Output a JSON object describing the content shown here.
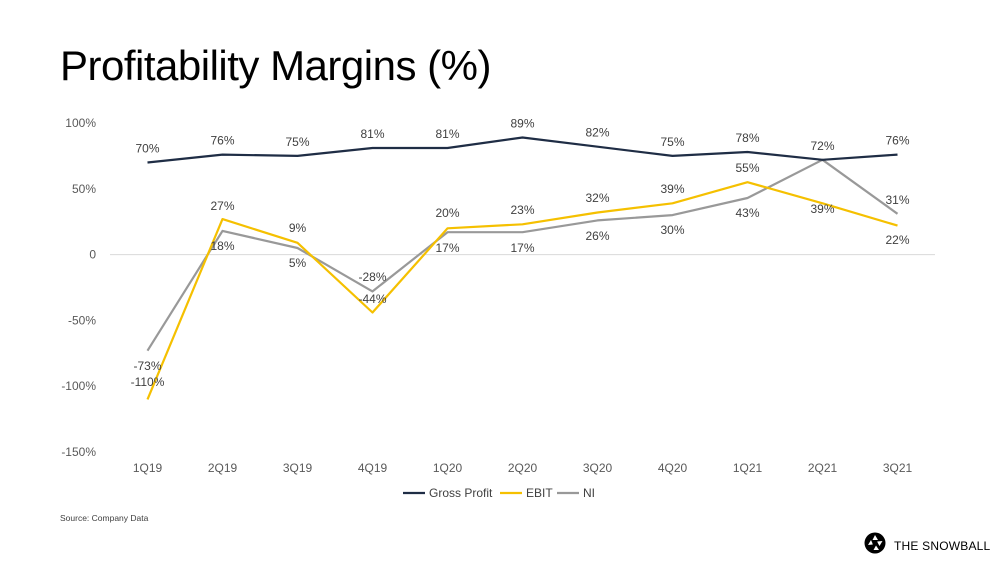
{
  "title": "Profitability Margins (%)",
  "source": "Source: Company Data",
  "brand": {
    "name": "THE SNOWBALL",
    "icon": "snowball-aperture-icon"
  },
  "chart_data": {
    "type": "line",
    "categories": [
      "1Q19",
      "2Q19",
      "3Q19",
      "4Q19",
      "1Q20",
      "2Q20",
      "3Q20",
      "4Q20",
      "1Q21",
      "2Q21",
      "3Q21"
    ],
    "ylim": [
      -150,
      100
    ],
    "yticks": [
      100,
      50,
      0,
      -50,
      -100,
      -150
    ],
    "ytick_labels": [
      "100%",
      "50%",
      "0",
      "-50%",
      "-100%",
      "-150%"
    ],
    "grid": false,
    "zero_line": true,
    "legend_position": "bottom",
    "series": [
      {
        "name": "Gross Profit",
        "color": "#1f2d45",
        "values": [
          70,
          76,
          75,
          81,
          81,
          89,
          82,
          75,
          78,
          72,
          76
        ],
        "labels": [
          "70%",
          "76%",
          "75%",
          "81%",
          "81%",
          "89%",
          "82%",
          "75%",
          "78%",
          "72%",
          "76%"
        ]
      },
      {
        "name": "EBIT",
        "color": "#f5c000",
        "values": [
          -110,
          27,
          9,
          -44,
          20,
          23,
          32,
          39,
          55,
          39,
          22
        ],
        "labels": [
          "-110%",
          "27%",
          "9%",
          "-44%",
          "20%",
          "23%",
          "32%",
          "39%",
          "55%",
          "39%",
          "22%"
        ]
      },
      {
        "name": "NI",
        "color": "#999999",
        "values": [
          -73,
          18,
          5,
          -28,
          17,
          17,
          26,
          30,
          43,
          72,
          31
        ],
        "labels": [
          "-73%",
          "18%",
          "5%",
          "-28%",
          "17%",
          "17%",
          "26%",
          "30%",
          "43%",
          "",
          "31%"
        ]
      }
    ]
  }
}
